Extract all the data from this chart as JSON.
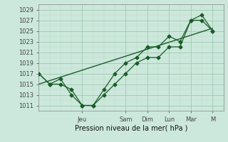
{
  "xlabel": "Pression niveau de la mer( hPa )",
  "bg_color": "#cce8dc",
  "grid_major_color": "#a0c8b0",
  "grid_minor_color": "#b8d8c8",
  "line_color": "#1a5c28",
  "ylim": [
    1010.0,
    1030.0
  ],
  "yticks": [
    1011,
    1013,
    1015,
    1017,
    1019,
    1021,
    1023,
    1025,
    1027,
    1029
  ],
  "xlim": [
    0,
    8.5
  ],
  "day_labels": [
    "Jeu",
    "Sam",
    "Dim",
    "Lun",
    "Mar",
    "M"
  ],
  "day_positions": [
    2.0,
    4.0,
    5.0,
    6.0,
    7.0,
    8.0
  ],
  "series1_x": [
    0.0,
    0.5,
    1.0,
    1.5,
    2.0,
    2.5,
    3.0,
    3.5,
    4.0,
    4.5,
    5.0,
    5.5,
    6.0,
    6.5,
    7.0,
    7.5,
    8.0
  ],
  "series1_y": [
    1017,
    1015,
    1015,
    1014,
    1011,
    1011,
    1013,
    1015,
    1017,
    1019,
    1020,
    1020,
    1022,
    1022,
    1027,
    1027,
    1025
  ],
  "series2_x": [
    0.0,
    0.5,
    1.0,
    1.5,
    2.0,
    2.5,
    3.0,
    3.5,
    4.0,
    4.5,
    5.0,
    5.5,
    6.0,
    6.5,
    7.0,
    7.5,
    8.0
  ],
  "series2_y": [
    1017,
    1015,
    1016,
    1013,
    1011,
    1011,
    1014,
    1017,
    1019,
    1020,
    1022,
    1022,
    1024,
    1023,
    1027,
    1028,
    1025
  ],
  "trend_x": [
    0.0,
    8.0
  ],
  "trend_y": [
    1015.0,
    1025.5
  ]
}
